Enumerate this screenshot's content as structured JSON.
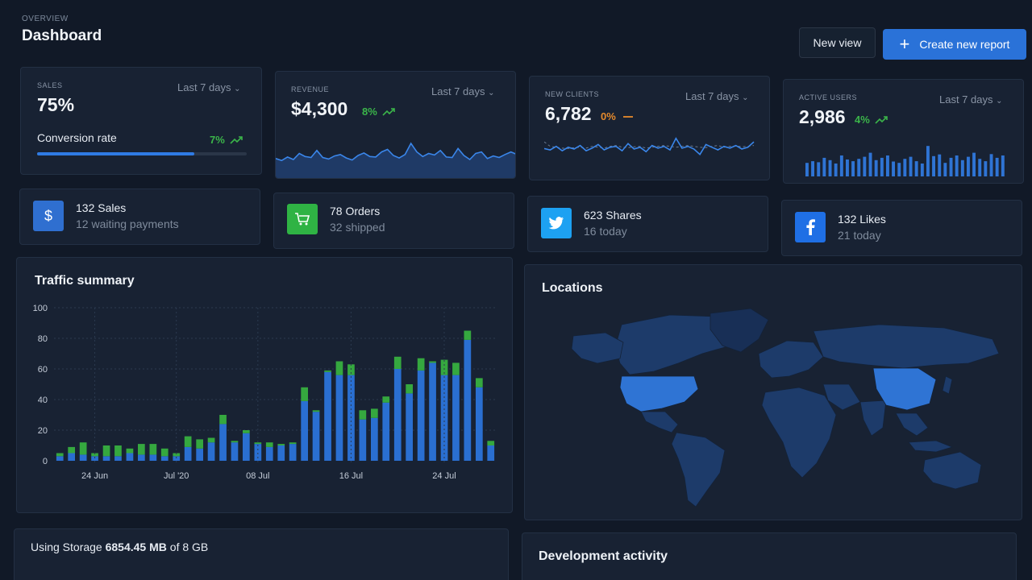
{
  "header": {
    "overview": "OVERVIEW",
    "title": "Dashboard",
    "new_view": "New view",
    "create_report": "Create new report"
  },
  "stats": {
    "sales": {
      "label": "SALES",
      "period": "Last 7 days",
      "value": "75%",
      "sub_label": "Conversion rate",
      "change": "7%",
      "progress": 0.75
    },
    "revenue": {
      "label": "REVENUE",
      "period": "Last 7 days",
      "value": "$4,300",
      "change": "8%"
    },
    "new_clients": {
      "label": "NEW CLIENTS",
      "period": "Last 7 days",
      "value": "6,782",
      "change": "0%"
    },
    "active_users": {
      "label": "ACTIVE USERS",
      "period": "Last 7 days",
      "value": "2,986",
      "change": "4%"
    }
  },
  "sparklines": {
    "revenue": [
      42,
      38,
      45,
      40,
      52,
      46,
      44,
      58,
      44,
      41,
      47,
      50,
      43,
      39,
      48,
      53,
      46,
      45,
      55,
      60,
      48,
      43,
      50,
      72,
      55,
      46,
      52,
      49,
      58,
      45,
      44,
      62,
      48,
      40,
      52,
      55,
      42,
      47,
      44,
      50,
      55,
      50
    ],
    "clients_actual": [
      55,
      52,
      60,
      50,
      58,
      54,
      62,
      50,
      56,
      64,
      52,
      58,
      60,
      50,
      66,
      54,
      58,
      48,
      62,
      56,
      60,
      52,
      78,
      56,
      60,
      54,
      42,
      64,
      58,
      52,
      60,
      56,
      62,
      54,
      58,
      70
    ],
    "clients_expected": [
      70,
      60,
      58,
      56,
      55,
      57,
      58,
      56,
      60,
      58,
      56,
      60,
      62,
      58,
      57,
      59,
      60,
      56,
      58,
      60,
      62,
      60,
      58,
      60,
      62,
      60,
      58,
      57,
      60,
      62,
      58,
      60,
      61,
      59,
      60,
      62
    ],
    "active_users": [
      40,
      45,
      42,
      55,
      48,
      38,
      62,
      50,
      45,
      52,
      58,
      70,
      48,
      55,
      62,
      44,
      40,
      52,
      58,
      45,
      38,
      90,
      60,
      65,
      40,
      55,
      62,
      48,
      58,
      70,
      52,
      45,
      66,
      55,
      62
    ]
  },
  "mini_cards": [
    {
      "title": "132 Sales",
      "sub": "12 waiting payments",
      "icon": "dollar-icon",
      "color": "#2f6fd0"
    },
    {
      "title": "78 Orders",
      "sub": "32 shipped",
      "icon": "cart-icon",
      "color": "#2fb344"
    },
    {
      "title": "623 Shares",
      "sub": "16 today",
      "icon": "twitter-icon",
      "color": "#1da1f2"
    },
    {
      "title": "132 Likes",
      "sub": "21 today",
      "icon": "facebook-icon",
      "color": "#1f6fe5"
    }
  ],
  "traffic": {
    "title": "Traffic summary",
    "chart_data": {
      "type": "bar",
      "stacked": true,
      "ylim": [
        0,
        100
      ],
      "yticks": [
        0,
        20,
        40,
        60,
        80,
        100
      ],
      "xtick_labels": [
        "24 Jun",
        "Jul '20",
        "08 Jul",
        "16 Jul",
        "24 Jul"
      ],
      "xtick_index": [
        3,
        10,
        17,
        25,
        33
      ],
      "series": [
        {
          "color": "#2a6fd1",
          "values": [
            3,
            5,
            4,
            3,
            3,
            3,
            5,
            4,
            4,
            3,
            3,
            9,
            8,
            12,
            24,
            12,
            18,
            11,
            9,
            10,
            11,
            39,
            32,
            58,
            56,
            56,
            27,
            28,
            38,
            60,
            44,
            59,
            64,
            56,
            56,
            79,
            48,
            10
          ]
        },
        {
          "color": "#35a83f",
          "values": [
            2,
            4,
            8,
            2,
            7,
            7,
            3,
            7,
            7,
            5,
            2,
            7,
            6,
            3,
            6,
            1,
            2,
            1,
            3,
            1,
            1,
            9,
            1,
            1,
            9,
            7,
            6,
            6,
            4,
            8,
            6,
            8,
            1,
            10,
            8,
            6,
            6,
            3
          ]
        }
      ],
      "legend": "none",
      "grid": true
    }
  },
  "locations": {
    "title": "Locations"
  },
  "storage": {
    "prefix": "Using Storage",
    "used": "6854.45 MB",
    "suffix": "of 8 GB"
  },
  "dev_activity": {
    "title": "Development activity"
  }
}
